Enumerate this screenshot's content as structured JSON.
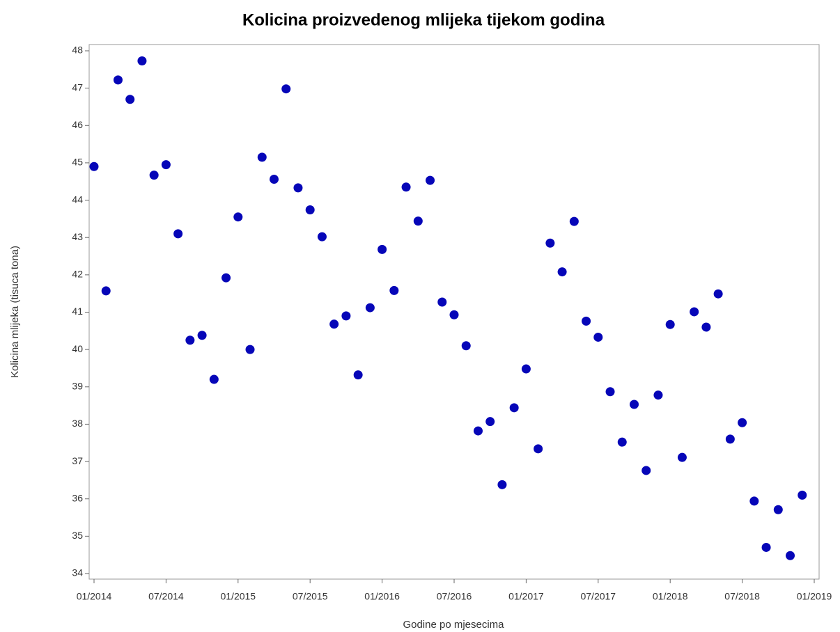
{
  "chart_data": {
    "type": "scatter",
    "title": "Kolicina proizvedenog mlijeka tijekom godina",
    "x_label": "Godine po mjesecima",
    "y_label": "Kolicina mlijeka (tisuca tona)",
    "color": "#0606b8",
    "x": [
      "2014-01",
      "2014-02",
      "2014-03",
      "2014-04",
      "2014-05",
      "2014-06",
      "2014-07",
      "2014-08",
      "2014-09",
      "2014-10",
      "2014-11",
      "2014-12",
      "2015-01",
      "2015-02",
      "2015-03",
      "2015-04",
      "2015-05",
      "2015-06",
      "2015-07",
      "2015-08",
      "2015-09",
      "2015-10",
      "2015-11",
      "2015-12",
      "2016-01",
      "2016-02",
      "2016-03",
      "2016-04",
      "2016-05",
      "2016-06",
      "2016-07",
      "2016-08",
      "2016-09",
      "2016-10",
      "2016-11",
      "2016-12",
      "2017-01",
      "2017-02",
      "2017-03",
      "2017-04",
      "2017-05",
      "2017-06",
      "2017-07",
      "2017-08",
      "2017-09",
      "2017-10",
      "2017-11",
      "2017-12",
      "2018-01",
      "2018-02",
      "2018-03",
      "2018-04",
      "2018-05",
      "2018-06",
      "2018-07",
      "2018-08",
      "2018-09",
      "2018-10",
      "2018-11",
      "2018-12"
    ],
    "values": [
      44.9,
      41.57,
      47.22,
      46.7,
      47.73,
      44.67,
      44.95,
      43.1,
      40.25,
      40.38,
      39.2,
      41.92,
      43.55,
      40.0,
      45.15,
      44.56,
      46.98,
      44.33,
      43.74,
      43.02,
      40.68,
      40.9,
      39.32,
      41.12,
      42.68,
      41.58,
      44.35,
      43.44,
      44.53,
      41.27,
      40.93,
      40.1,
      37.82,
      38.07,
      36.38,
      38.44,
      39.48,
      37.34,
      42.85,
      42.08,
      43.43,
      40.76,
      40.33,
      38.87,
      37.52,
      38.53,
      36.76,
      38.78,
      40.67,
      37.11,
      41.01,
      40.6,
      41.49,
      37.6,
      38.04,
      35.94,
      34.7,
      35.71,
      34.48,
      36.1
    ],
    "xlim": [
      "2014-01",
      "2019-01"
    ],
    "xticks": [
      {
        "value": "2014-01",
        "label": "01/2014"
      },
      {
        "value": "2014-07",
        "label": "07/2014"
      },
      {
        "value": "2015-01",
        "label": "01/2015"
      },
      {
        "value": "2015-07",
        "label": "07/2015"
      },
      {
        "value": "2016-01",
        "label": "01/2016"
      },
      {
        "value": "2016-07",
        "label": "07/2016"
      },
      {
        "value": "2017-01",
        "label": "01/2017"
      },
      {
        "value": "2017-07",
        "label": "07/2017"
      },
      {
        "value": "2018-01",
        "label": "01/2018"
      },
      {
        "value": "2018-07",
        "label": "07/2018"
      },
      {
        "value": "2019-01",
        "label": "01/2019"
      }
    ],
    "ylim": [
      34,
      48
    ],
    "yticks": [
      34,
      35,
      36,
      37,
      38,
      39,
      40,
      41,
      42,
      43,
      44,
      45,
      46,
      47,
      48
    ]
  }
}
